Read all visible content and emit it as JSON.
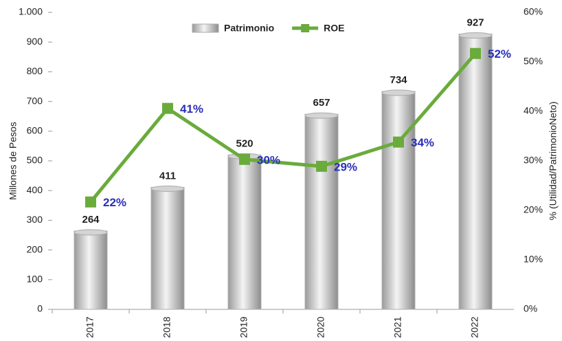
{
  "chart_data": {
    "type": "bar",
    "categories": [
      "2017",
      "2018",
      "2019",
      "2020",
      "2021",
      "2022"
    ],
    "series": [
      {
        "name": "Patrimonio",
        "type": "bar",
        "color": "#d4d4d4",
        "values": [
          264,
          411,
          520,
          657,
          734,
          927
        ]
      },
      {
        "name": "ROE",
        "type": "line",
        "axis": "y2",
        "color": "#6aab3c",
        "values": [
          21.7,
          40.6,
          30.3,
          28.9,
          33.8,
          51.7
        ],
        "value_labels": [
          "22%",
          "41%",
          "30%",
          "29%",
          "34%",
          "52%"
        ]
      }
    ],
    "ylabel": "Millones de Pesos",
    "y2label": "% (Utilidad/PatrimonioNeto)",
    "ylim": [
      0,
      1000
    ],
    "yticks": [
      0,
      100,
      200,
      300,
      400,
      500,
      600,
      700,
      800,
      900,
      {
        "value": 1000,
        "label": "1.000"
      }
    ],
    "y2lim": [
      0,
      60
    ],
    "y2ticks": [
      {
        "value": 0,
        "label": "0%"
      },
      {
        "value": 10,
        "label": "10%"
      },
      {
        "value": 20,
        "label": "20%"
      },
      {
        "value": 30,
        "label": "30%"
      },
      {
        "value": 40,
        "label": "40%"
      },
      {
        "value": 50,
        "label": "50%"
      },
      {
        "value": 60,
        "label": "60%"
      }
    ],
    "grid": false,
    "legend": "top"
  }
}
